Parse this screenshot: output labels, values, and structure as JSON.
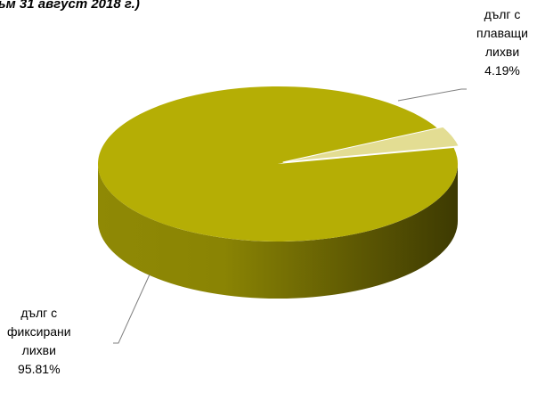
{
  "chart_data": {
    "type": "pie",
    "title": "ъм 31 август 2018 г.)",
    "slices": [
      {
        "label_lines": [
          "дълг с",
          "фиксирани",
          "лихви"
        ],
        "value_label": "95.81%",
        "value": 95.81,
        "color": "#b5ae05"
      },
      {
        "label_lines": [
          "дълг с",
          "плаващи",
          "лихви"
        ],
        "value_label": "4.19%",
        "value": 4.19,
        "color": "#e3dd93"
      }
    ],
    "legend": "none"
  }
}
